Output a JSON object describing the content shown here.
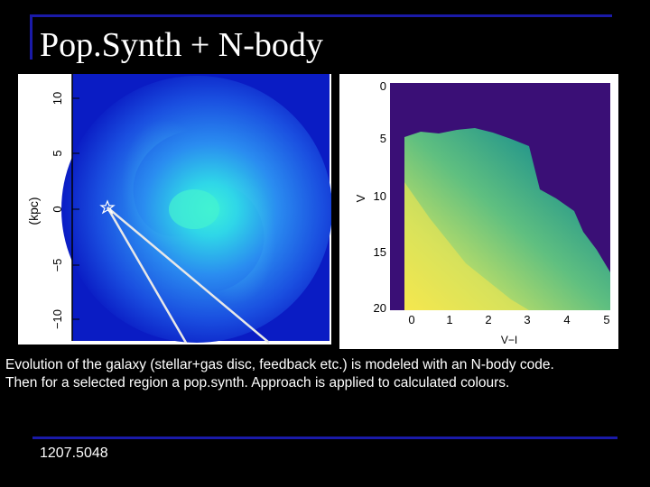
{
  "slide": {
    "title": "Pop.Synth + N-body",
    "caption_lines": [
      "Evolution of the galaxy (stellar+gas disc, feedback etc.) is modeled with an N-body code.",
      "Then for a selected region a pop.synth. Approach is applied to calculated colours."
    ],
    "reference_id": "1207.5048",
    "accent_color": "#1a1aa8"
  },
  "galaxy_plot": {
    "ylabel": "(kpc)",
    "y_ticks": [
      "10",
      "5",
      "0",
      "−5",
      "−10"
    ],
    "marker_icon": "star-icon",
    "colors": {
      "background": "#0a1cc4",
      "core": "#35f0d0",
      "disc": "#2a8cf0"
    }
  },
  "heatmap_plot": {
    "xlabel": "V−I",
    "ylabel": "V",
    "x_ticks": [
      "0",
      "1",
      "2",
      "3",
      "4",
      "5"
    ],
    "y_ticks": [
      "0",
      "5",
      "10",
      "15",
      "20"
    ],
    "colors": {
      "background": "#3a0f76",
      "low": "#2a9a8a",
      "high": "#f5e84e"
    }
  }
}
